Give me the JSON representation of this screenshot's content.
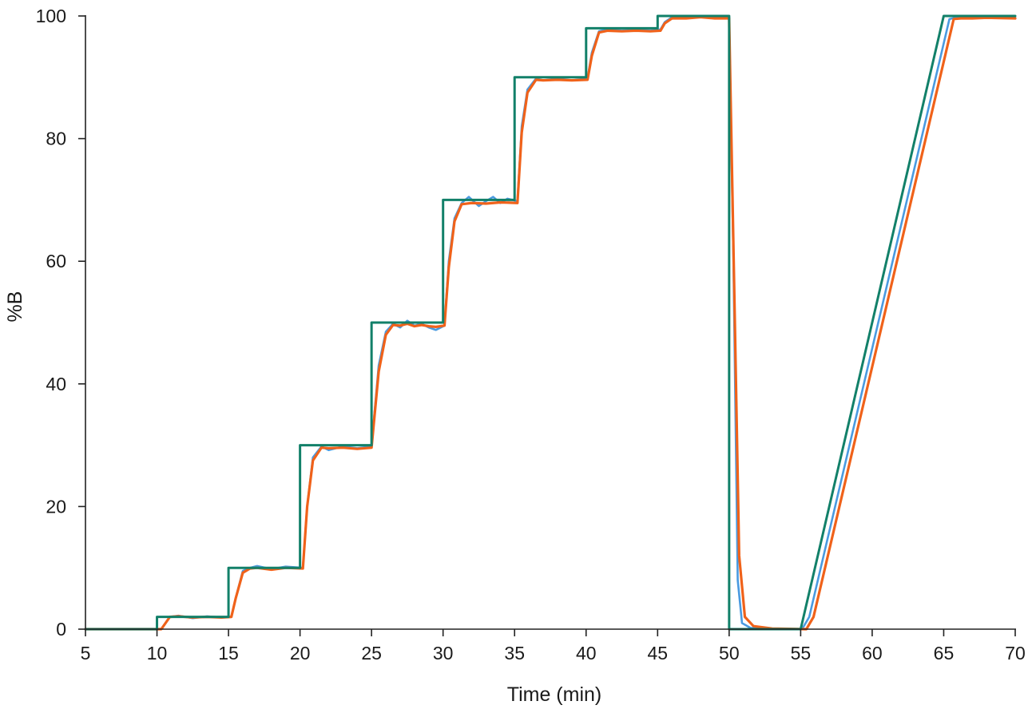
{
  "chart_data": {
    "type": "line",
    "xlabel": "Time (min)",
    "ylabel": "%B",
    "xlim": [
      5,
      70
    ],
    "ylim": [
      0,
      100
    ],
    "x_ticks": [
      5,
      10,
      15,
      20,
      25,
      30,
      35,
      40,
      45,
      50,
      55,
      60,
      65,
      70
    ],
    "y_ticks": [
      0,
      20,
      40,
      60,
      80,
      100
    ],
    "grid": false,
    "series": [
      {
        "color": "#4a9ae0",
        "width": 2.6,
        "points": [
          [
            5,
            0
          ],
          [
            10,
            0
          ],
          [
            10.3,
            0
          ],
          [
            10.9,
            2
          ],
          [
            11.5,
            2.2
          ],
          [
            12.5,
            1.8
          ],
          [
            13.5,
            2.1
          ],
          [
            14.5,
            1.9
          ],
          [
            15.2,
            2
          ],
          [
            15.5,
            5
          ],
          [
            16,
            9.5
          ],
          [
            16.5,
            10
          ],
          [
            17,
            10.3
          ],
          [
            18,
            9.8
          ],
          [
            19,
            10.2
          ],
          [
            20.2,
            10
          ],
          [
            20.5,
            20
          ],
          [
            20.9,
            28
          ],
          [
            21.5,
            29.8
          ],
          [
            22,
            29.2
          ],
          [
            23,
            29.8
          ],
          [
            24,
            29.5
          ],
          [
            25,
            29.8
          ],
          [
            25.5,
            43
          ],
          [
            26,
            48.5
          ],
          [
            26.5,
            49.8
          ],
          [
            27,
            49.2
          ],
          [
            27.5,
            50.3
          ],
          [
            28,
            49.5
          ],
          [
            28.5,
            49.8
          ],
          [
            29,
            49.2
          ],
          [
            29.5,
            48.8
          ],
          [
            30.1,
            49.5
          ],
          [
            30.4,
            60
          ],
          [
            30.8,
            67
          ],
          [
            31.3,
            69.5
          ],
          [
            31.8,
            70.5
          ],
          [
            32.5,
            69
          ],
          [
            33,
            69.8
          ],
          [
            33.5,
            70.5
          ],
          [
            34,
            69.5
          ],
          [
            34.5,
            70.2
          ],
          [
            35.2,
            69.8
          ],
          [
            35.5,
            82
          ],
          [
            35.9,
            88
          ],
          [
            36.5,
            89.8
          ],
          [
            37,
            89.5
          ],
          [
            38,
            89.8
          ],
          [
            39,
            89.5
          ],
          [
            40.1,
            89.8
          ],
          [
            40.4,
            94
          ],
          [
            40.9,
            97.5
          ],
          [
            41.5,
            97.8
          ],
          [
            42.5,
            97.6
          ],
          [
            43.5,
            97.8
          ],
          [
            44.5,
            97.6
          ],
          [
            45.2,
            97.8
          ],
          [
            45.5,
            99
          ],
          [
            46,
            99.8
          ],
          [
            47,
            99.8
          ],
          [
            48,
            100
          ],
          [
            49,
            99.8
          ],
          [
            50,
            99.8
          ],
          [
            50.3,
            60
          ],
          [
            50.6,
            8
          ],
          [
            50.9,
            1
          ],
          [
            51.5,
            0.2
          ],
          [
            52.5,
            0
          ],
          [
            55.1,
            0
          ],
          [
            55.6,
            2
          ],
          [
            65.4,
            99.5
          ],
          [
            66,
            99.8
          ],
          [
            67,
            99.8
          ],
          [
            68,
            100
          ],
          [
            70,
            99.8
          ]
        ]
      },
      {
        "color": "#f0621a",
        "width": 3.2,
        "points": [
          [
            5,
            0
          ],
          [
            10,
            0
          ],
          [
            10.3,
            0
          ],
          [
            10.9,
            2
          ],
          [
            11.5,
            2.1
          ],
          [
            12.5,
            1.9
          ],
          [
            13.5,
            2
          ],
          [
            14.5,
            1.9
          ],
          [
            15.2,
            2
          ],
          [
            15.5,
            5
          ],
          [
            16,
            9.2
          ],
          [
            16.5,
            9.9
          ],
          [
            17,
            10
          ],
          [
            18,
            9.7
          ],
          [
            19,
            10
          ],
          [
            20.2,
            9.9
          ],
          [
            20.5,
            20
          ],
          [
            20.9,
            27.5
          ],
          [
            21.5,
            29.6
          ],
          [
            22,
            29.5
          ],
          [
            23,
            29.6
          ],
          [
            24,
            29.4
          ],
          [
            25,
            29.6
          ],
          [
            25.5,
            42
          ],
          [
            26,
            48
          ],
          [
            26.5,
            49.6
          ],
          [
            27,
            49.5
          ],
          [
            27.5,
            49.8
          ],
          [
            28,
            49.4
          ],
          [
            28.5,
            49.6
          ],
          [
            29,
            49.4
          ],
          [
            29.5,
            49.3
          ],
          [
            30.1,
            49.5
          ],
          [
            30.4,
            59
          ],
          [
            30.8,
            66.5
          ],
          [
            31.3,
            69.3
          ],
          [
            32,
            69.5
          ],
          [
            33,
            69.4
          ],
          [
            34,
            69.6
          ],
          [
            35.2,
            69.5
          ],
          [
            35.5,
            81
          ],
          [
            35.9,
            87.5
          ],
          [
            36.5,
            89.6
          ],
          [
            37,
            89.5
          ],
          [
            38,
            89.6
          ],
          [
            39,
            89.5
          ],
          [
            40.1,
            89.6
          ],
          [
            40.4,
            93.5
          ],
          [
            40.9,
            97.3
          ],
          [
            41.5,
            97.6
          ],
          [
            42.5,
            97.5
          ],
          [
            43.5,
            97.6
          ],
          [
            44.5,
            97.5
          ],
          [
            45.2,
            97.6
          ],
          [
            45.5,
            98.8
          ],
          [
            46,
            99.6
          ],
          [
            47,
            99.6
          ],
          [
            48,
            99.8
          ],
          [
            49,
            99.6
          ],
          [
            50,
            99.6
          ],
          [
            50.4,
            50
          ],
          [
            50.7,
            12
          ],
          [
            51.1,
            2
          ],
          [
            51.7,
            0.5
          ],
          [
            53,
            0.1
          ],
          [
            55.4,
            0
          ],
          [
            55.9,
            2
          ],
          [
            65.7,
            99.5
          ],
          [
            66.2,
            99.6
          ],
          [
            67,
            99.6
          ],
          [
            68,
            99.7
          ],
          [
            70,
            99.6
          ]
        ]
      },
      {
        "color": "#128069",
        "width": 3.0,
        "points": [
          [
            5,
            0
          ],
          [
            10,
            0
          ],
          [
            10,
            2
          ],
          [
            15,
            2
          ],
          [
            15,
            10
          ],
          [
            20,
            10
          ],
          [
            20,
            30
          ],
          [
            25,
            30
          ],
          [
            25,
            50
          ],
          [
            30,
            50
          ],
          [
            30,
            70
          ],
          [
            35,
            70
          ],
          [
            35,
            90
          ],
          [
            40,
            90
          ],
          [
            40,
            98
          ],
          [
            45,
            98
          ],
          [
            45,
            100
          ],
          [
            50,
            100
          ],
          [
            50,
            0
          ],
          [
            55,
            0
          ],
          [
            65,
            100
          ],
          [
            70,
            100
          ]
        ]
      }
    ]
  }
}
